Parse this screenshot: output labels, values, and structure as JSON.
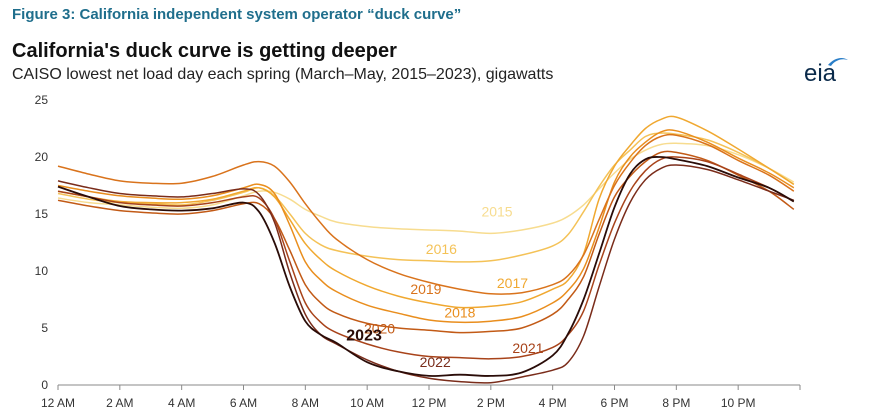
{
  "figure_label": "Figure 3: California independent system operator “duck curve”",
  "title": "California's duck curve is getting deeper",
  "subtitle": "CAISO lowest net load day each spring (March–May, 2015–2023), gigawatts",
  "logo": {
    "text": "eia",
    "accent": "#2a7ec8"
  },
  "chart_data": {
    "type": "line",
    "title": "California's duck curve is getting deeper",
    "xlabel": "",
    "ylabel": "",
    "ylim": [
      0,
      25
    ],
    "yticks": [
      0,
      5,
      10,
      15,
      20,
      25
    ],
    "xlim": [
      0,
      24
    ],
    "xticks": [
      {
        "hour": 0,
        "label": "12 AM"
      },
      {
        "hour": 2,
        "label": "2 AM"
      },
      {
        "hour": 4,
        "label": "4 AM"
      },
      {
        "hour": 6,
        "label": "6 AM"
      },
      {
        "hour": 8,
        "label": "8 AM"
      },
      {
        "hour": 10,
        "label": "10 AM"
      },
      {
        "hour": 12,
        "label": "12 PM"
      },
      {
        "hour": 14,
        "label": "2 PM"
      },
      {
        "hour": 16,
        "label": "4 PM"
      },
      {
        "hour": 18,
        "label": "6 PM"
      },
      {
        "hour": 20,
        "label": "8 PM"
      },
      {
        "hour": 22,
        "label": "10 PM"
      }
    ],
    "x": [
      0,
      1,
      2,
      3,
      4,
      5,
      6,
      6.5,
      7,
      7.5,
      8,
      8.5,
      9,
      10,
      11,
      12,
      13,
      14,
      15,
      16,
      16.5,
      17,
      17.5,
      18,
      18.5,
      19,
      19.5,
      20,
      21,
      22,
      23,
      23.8
    ],
    "series": [
      {
        "name": "2015",
        "color": "#f7dc8f",
        "label_hour": 14.2,
        "label_value": 14.8,
        "label_bold": false,
        "values": [
          16.4,
          16.0,
          15.8,
          15.6,
          15.5,
          15.8,
          16.6,
          17.0,
          16.9,
          16.3,
          15.4,
          14.8,
          14.3,
          13.9,
          13.7,
          13.6,
          13.5,
          13.3,
          13.6,
          14.2,
          14.8,
          15.8,
          17.2,
          18.6,
          19.8,
          20.6,
          21.1,
          21.2,
          21.0,
          20.2,
          19.0,
          17.8
        ]
      },
      {
        "name": "2016",
        "color": "#f4c257",
        "label_hour": 12.4,
        "label_value": 11.5,
        "label_bold": false,
        "values": [
          16.8,
          16.3,
          16.0,
          15.9,
          15.8,
          16.2,
          16.9,
          17.3,
          16.6,
          15.0,
          13.3,
          12.3,
          11.8,
          11.3,
          11.0,
          10.9,
          10.8,
          10.9,
          11.4,
          12.2,
          13.2,
          15.2,
          17.4,
          19.3,
          20.6,
          21.8,
          22.1,
          22.0,
          21.5,
          20.4,
          19.0,
          17.6
        ]
      },
      {
        "name": "2017",
        "color": "#f0a830",
        "label_hour": 14.7,
        "label_value": 8.5,
        "label_bold": false,
        "values": [
          17.0,
          16.5,
          16.1,
          16.0,
          16.0,
          16.3,
          17.0,
          17.3,
          16.5,
          14.5,
          12.4,
          11.0,
          10.0,
          8.7,
          7.8,
          7.2,
          6.8,
          6.9,
          7.3,
          8.4,
          9.2,
          11.5,
          16.3,
          19.2,
          21.0,
          22.5,
          23.3,
          23.5,
          22.3,
          20.7,
          19.0,
          17.6
        ]
      },
      {
        "name": "2018",
        "color": "#e98e1e",
        "label_hour": 13.0,
        "label_value": 5.9,
        "label_bold": false,
        "values": [
          17.5,
          17.0,
          16.6,
          16.4,
          16.3,
          16.6,
          17.3,
          17.6,
          16.8,
          14.0,
          10.8,
          9.2,
          8.2,
          7.0,
          6.3,
          5.7,
          5.5,
          5.6,
          6.0,
          7.2,
          8.3,
          10.2,
          13.8,
          17.8,
          20.0,
          21.3,
          22.2,
          22.3,
          21.3,
          19.9,
          18.6,
          17.3
        ]
      },
      {
        "name": "2019",
        "color": "#d9731c",
        "label_hour": 11.9,
        "label_value": 8.0,
        "label_bold": false,
        "values": [
          19.2,
          18.5,
          17.9,
          17.7,
          17.7,
          18.3,
          19.3,
          19.6,
          19.2,
          17.8,
          15.9,
          14.2,
          12.8,
          11.0,
          9.8,
          9.0,
          8.4,
          8.0,
          8.1,
          8.8,
          9.6,
          11.4,
          14.5,
          17.5,
          19.5,
          21.0,
          21.8,
          21.9,
          21.1,
          19.7,
          18.4,
          17.0
        ]
      },
      {
        "name": "2020",
        "color": "#c25a16",
        "label_hour": 10.4,
        "label_value": 4.5,
        "label_bold": false,
        "values": [
          16.2,
          15.7,
          15.3,
          15.1,
          15.0,
          15.3,
          15.9,
          15.9,
          14.6,
          11.8,
          8.8,
          7.2,
          6.3,
          5.4,
          5.0,
          4.8,
          4.6,
          4.7,
          5.0,
          6.2,
          7.5,
          9.5,
          13.2,
          16.5,
          18.3,
          19.6,
          20.4,
          20.4,
          19.7,
          18.4,
          17.0,
          15.4
        ]
      },
      {
        "name": "2021",
        "color": "#a8431a",
        "label_hour": 15.2,
        "label_value": 2.8,
        "label_bold": false,
        "values": [
          17.0,
          16.5,
          16.0,
          15.8,
          15.7,
          16.0,
          16.5,
          16.4,
          14.6,
          10.8,
          7.2,
          5.5,
          4.6,
          3.6,
          2.9,
          2.5,
          2.4,
          2.3,
          2.5,
          3.3,
          4.4,
          6.5,
          10.5,
          14.2,
          17.0,
          18.8,
          19.8,
          20.0,
          19.6,
          18.5,
          17.3,
          16.1
        ]
      },
      {
        "name": "2022",
        "color": "#7a2c1a",
        "label_hour": 12.2,
        "label_value": 1.6,
        "label_bold": false,
        "values": [
          17.9,
          17.3,
          16.8,
          16.6,
          16.5,
          16.8,
          17.2,
          16.7,
          14.3,
          9.8,
          6.2,
          4.4,
          3.6,
          2.2,
          1.2,
          0.6,
          0.3,
          0.2,
          0.7,
          1.3,
          2.0,
          4.3,
          8.6,
          12.8,
          16.0,
          18.0,
          19.0,
          19.3,
          18.9,
          18.0,
          17.0,
          16.2
        ]
      },
      {
        "name": "2023",
        "color": "#2a0c08",
        "label_hour": 9.9,
        "label_value": 3.9,
        "label_bold": true,
        "values": [
          17.4,
          16.5,
          15.7,
          15.4,
          15.3,
          15.5,
          16.0,
          15.2,
          12.5,
          8.6,
          5.6,
          4.4,
          3.7,
          2.0,
          1.2,
          0.8,
          0.9,
          0.8,
          1.1,
          2.6,
          4.5,
          7.5,
          11.5,
          15.6,
          18.5,
          19.8,
          20.0,
          19.8,
          19.2,
          18.2,
          17.3,
          16.1
        ]
      }
    ]
  }
}
